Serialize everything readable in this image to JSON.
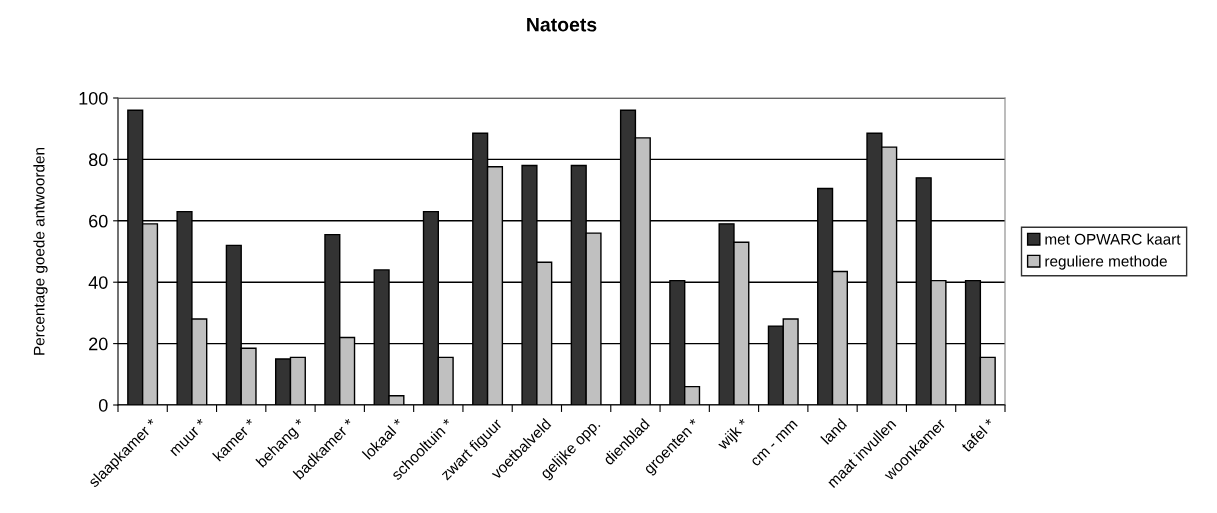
{
  "chart_data": {
    "type": "bar",
    "title": "Natoets",
    "ylabel": "Percentage goede antwoorden",
    "categories": [
      "slaapkamer *",
      "muur *",
      "kamer *",
      "behang *",
      "badkamer *",
      "lokaal *",
      "schooltuin *",
      "zwart figuur",
      "voetbalveld",
      "gelijke opp.",
      "dienblad",
      "groenten *",
      "wijk *",
      "cm - mm",
      "land",
      "maat invullen",
      "woonkamer",
      "tafel *"
    ],
    "series": [
      {
        "name": "met OPWARC kaart",
        "color": "#333333",
        "values": [
          96,
          63,
          52,
          15,
          55.5,
          44,
          63,
          88.5,
          78,
          78,
          96,
          40.5,
          59,
          25.7,
          70.5,
          88.5,
          74,
          40.5
        ]
      },
      {
        "name": "reguliere methode",
        "color": "#c0c0c0",
        "values": [
          59,
          28,
          18.5,
          15.5,
          22,
          3,
          15.5,
          77.6,
          46.5,
          56,
          87,
          6,
          53,
          28,
          43.5,
          84,
          40.5,
          15.5
        ]
      }
    ],
    "ylim": [
      0,
      100
    ],
    "yticks": [
      0,
      20,
      40,
      60,
      80,
      100
    ],
    "grid": "y",
    "legend": "right"
  }
}
